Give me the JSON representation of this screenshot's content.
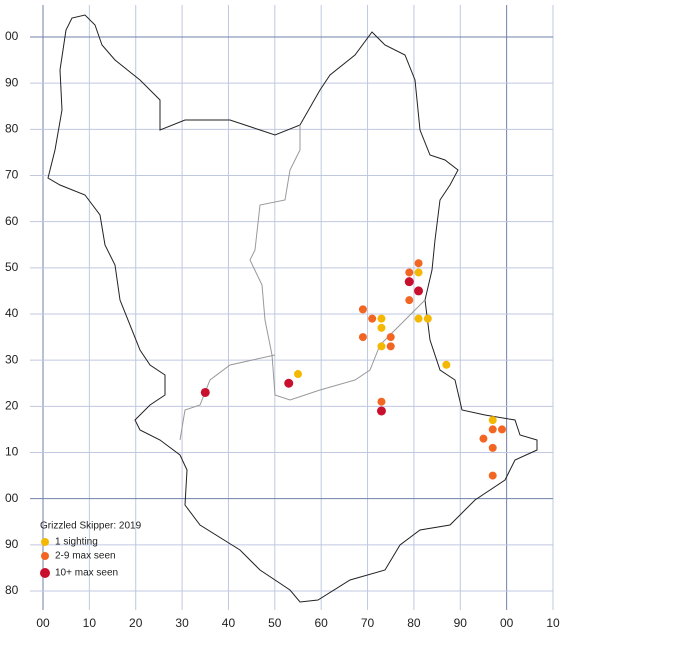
{
  "chart_data": {
    "type": "scatter",
    "title": "Grizzled Skipper:  2019",
    "xlim": [
      0,
      110
    ],
    "ylim": [
      -20,
      100
    ],
    "xticks": [
      {
        "value": 0,
        "label": "00"
      },
      10,
      20,
      30,
      40,
      50,
      60,
      70,
      80,
      90,
      {
        "value": 100,
        "label": "00"
      },
      {
        "value": 110,
        "label": "10"
      }
    ],
    "yticks": [
      {
        "value": -20,
        "label": "80"
      },
      {
        "value": -10,
        "label": "90"
      },
      {
        "value": 0,
        "label": "00"
      },
      10,
      20,
      30,
      40,
      50,
      60,
      70,
      80,
      90,
      {
        "value": 100,
        "label": "00"
      }
    ],
    "grid": true,
    "series": [
      {
        "name": "1 sighting",
        "color": "#f5b800",
        "x": [
          55,
          73,
          73,
          73,
          81,
          81,
          83,
          87,
          97
        ],
        "y": [
          27,
          39,
          37,
          33,
          49,
          39,
          39,
          29,
          17
        ]
      },
      {
        "name": "2-9 max seen",
        "color": "#f26522",
        "x": [
          69,
          71,
          69,
          75,
          75,
          79,
          81,
          79,
          73,
          95,
          97,
          99,
          97,
          97
        ],
        "y": [
          41,
          39,
          35,
          35,
          33,
          49,
          51,
          43,
          21,
          13,
          15,
          15,
          11,
          5
        ]
      },
      {
        "name": "10+ max seen",
        "color": "#c8102e",
        "x": [
          35,
          53,
          79,
          81,
          73
        ],
        "y": [
          23,
          25,
          47,
          45,
          19
        ]
      }
    ]
  }
}
